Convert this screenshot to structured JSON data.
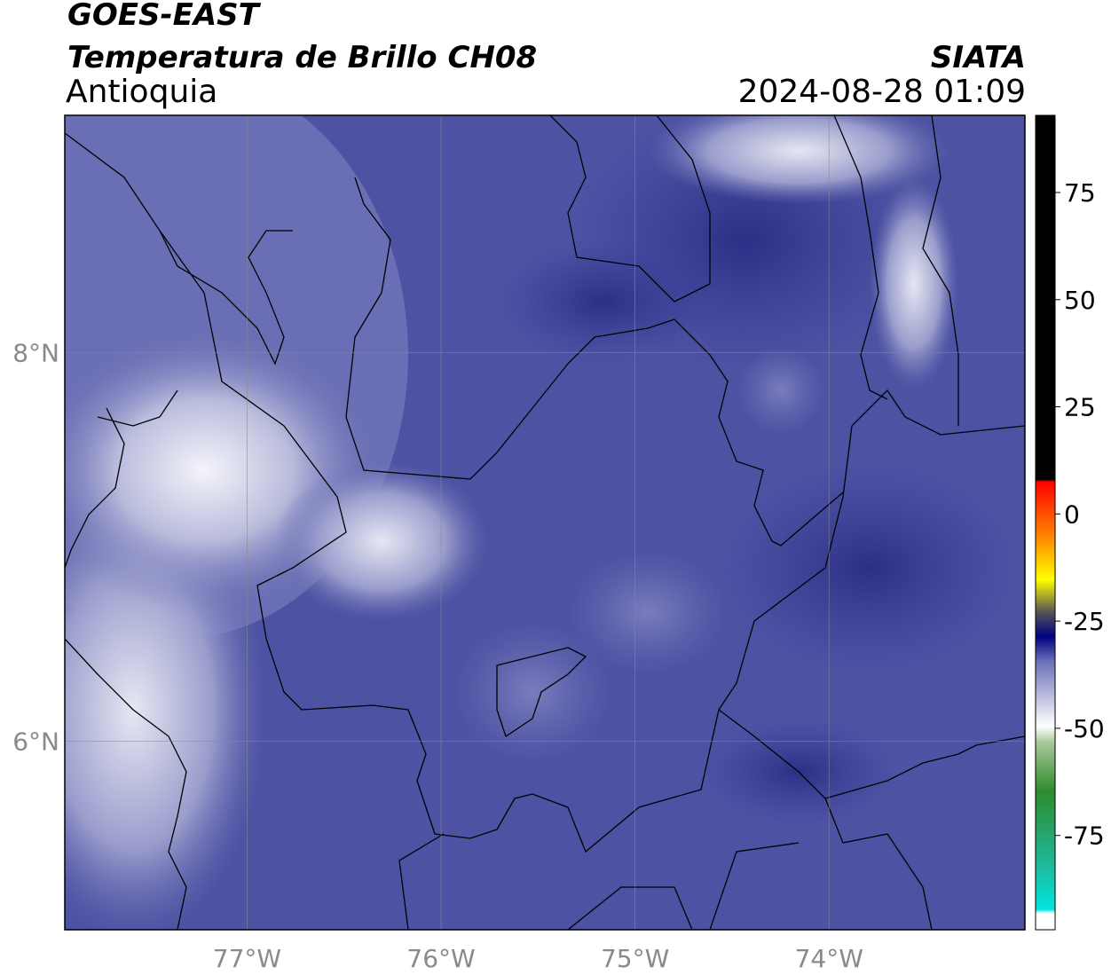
{
  "header": {
    "satellite": "GOES-EAST",
    "product": "Temperatura de Brillo CH08",
    "region": "Antioquia",
    "agency": "SIATA",
    "timestamp": "2024-08-28 01:09"
  },
  "map": {
    "xlim": [
      -77.94,
      -72.99
    ],
    "ylim": [
      5.03,
      9.22
    ],
    "xticks": [
      {
        "value": -77,
        "label": "77°W"
      },
      {
        "value": -76,
        "label": "76°W"
      },
      {
        "value": -75,
        "label": "75°W"
      },
      {
        "value": -74,
        "label": "74°W"
      }
    ],
    "yticks": [
      {
        "value": 8,
        "label": "8°N"
      },
      {
        "value": 6,
        "label": "6°N"
      }
    ]
  },
  "colorbar": {
    "clim": [
      -97,
      93
    ],
    "ticks": [
      75,
      50,
      25,
      0,
      -25,
      -50,
      -75
    ]
  }
}
